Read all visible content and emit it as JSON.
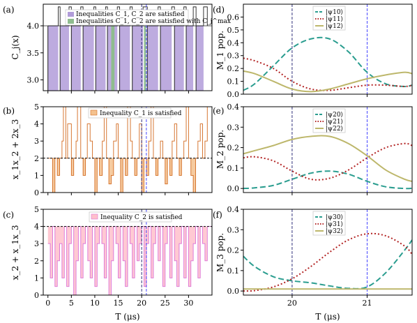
{
  "chart_data": [
    {
      "panel": "(a)",
      "type": "area",
      "ylabel": "C_j(x)",
      "xlim": [
        -1,
        35
      ],
      "ylim": [
        2.8,
        4.4
      ],
      "yticks": [
        3.0,
        3.5,
        4.0
      ],
      "ytick_labels": [
        "3.0",
        "3.5",
        "4.0"
      ],
      "legend": [
        "Inequalities C_1, C_2 are satisfied",
        "Inequalities C_1, C_2 are satisfied with C_j^max"
      ],
      "colors": {
        "satisfied": "#b19cd9",
        "max": "#8fbc8f"
      },
      "satisfied_intervals": [
        [
          0,
          2.2
        ],
        [
          2.6,
          4.5
        ],
        [
          5,
          7
        ],
        [
          7.5,
          9.8
        ],
        [
          10.2,
          12.3
        ],
        [
          12.7,
          14.8
        ],
        [
          15.3,
          17.5
        ],
        [
          18,
          20.3
        ],
        [
          21.2,
          23.5
        ],
        [
          24,
          26.4
        ],
        [
          27,
          29
        ],
        [
          29.5,
          31
        ],
        [
          31.6,
          33.2
        ]
      ],
      "max_intervals": [
        [
          13.5,
          14.2
        ],
        [
          20.5,
          20.9
        ]
      ],
      "vlines": [
        20,
        21
      ]
    },
    {
      "panel": "(b)",
      "type": "area",
      "ylabel": "x_1x_2 + 2x_3",
      "xlim": [
        -1,
        35
      ],
      "ylim": [
        0,
        5
      ],
      "yticks": [
        0,
        1,
        2,
        3,
        4,
        5
      ],
      "ytick_labels": [
        "0",
        "1",
        "2",
        "3",
        "4",
        "5"
      ],
      "threshold": 2,
      "legend": [
        "Inequality C_1 is satisfied"
      ],
      "colors": {
        "line": "#d2691e",
        "fill": "#f4c28f"
      },
      "x": [
        0,
        1,
        1.5,
        2,
        2.5,
        3,
        3.3,
        3.8,
        4.2,
        5,
        5.5,
        6,
        6.3,
        7,
        7.5,
        8,
        8.4,
        9,
        9.5,
        10,
        10.5,
        11,
        11.6,
        12,
        12.5,
        13,
        13.5,
        14,
        14.6,
        15,
        15.5,
        16,
        16.5,
        17,
        17.6,
        18,
        18.5,
        19,
        19.5,
        20,
        20.5,
        21,
        21.5,
        22,
        22.5,
        23,
        23.5,
        24,
        24.5,
        25,
        25.5,
        26,
        26.5,
        27,
        27.5,
        28,
        28.5,
        29,
        29.5,
        30,
        30.5,
        31,
        31.5,
        32,
        32.5,
        33,
        33.5,
        34
      ],
      "y": [
        2,
        0,
        2,
        1,
        2,
        3,
        5,
        2,
        4,
        1,
        2,
        3,
        5,
        2,
        1,
        2,
        4,
        3,
        2,
        0,
        2,
        1,
        3,
        5,
        2,
        0.5,
        1,
        3,
        4,
        2,
        0,
        2,
        1,
        5,
        3,
        2,
        1,
        2,
        4,
        0,
        2,
        1,
        3,
        5,
        2,
        1,
        2,
        3,
        2,
        0.5,
        2,
        1,
        3,
        4,
        2,
        1,
        2,
        3,
        5,
        2,
        1,
        0,
        2,
        3,
        4,
        2,
        3,
        5
      ]
    },
    {
      "panel": "(c)",
      "type": "area",
      "ylabel": "x_2 + x_1x_3",
      "xlabel": "T (μs)",
      "xlim": [
        -1,
        35
      ],
      "ylim": [
        0,
        5
      ],
      "xticks": [
        0,
        5,
        10,
        15,
        20,
        25,
        30
      ],
      "xtick_labels": [
        "0",
        "5",
        "10",
        "15",
        "20",
        "25",
        "30"
      ],
      "yticks": [
        0,
        1,
        2,
        3,
        4,
        5
      ],
      "ytick_labels": [
        "0",
        "1",
        "2",
        "3",
        "4",
        "5"
      ],
      "threshold": 4,
      "legend": [
        "Inequality C_2 is satisfied"
      ],
      "colors": {
        "line": "#da70d6",
        "fill": "#ffc0cb"
      },
      "x": [
        0,
        0.5,
        1,
        1.5,
        2,
        2.5,
        3,
        3.5,
        4,
        4.5,
        5,
        5.5,
        6,
        6.5,
        7,
        7.5,
        8,
        8.5,
        9,
        9.5,
        10,
        10.5,
        11,
        11.5,
        12,
        12.5,
        13,
        13.5,
        14,
        14.5,
        15,
        15.5,
        16,
        16.5,
        17,
        17.5,
        18,
        18.5,
        19,
        19.5,
        20,
        20.5,
        21,
        21.5,
        22,
        22.5,
        23,
        23.5,
        24,
        24.5,
        25,
        25.5,
        26,
        26.5,
        27,
        27.5,
        28,
        28.5,
        29,
        29.5,
        30,
        30.5,
        31,
        31.5,
        32,
        32.5,
        33,
        33.5,
        34
      ],
      "y": [
        3,
        1,
        4,
        0.5,
        2,
        3,
        1,
        4,
        0.5,
        3,
        4,
        0,
        2,
        4,
        1,
        3,
        4,
        2,
        1,
        4,
        0.5,
        3,
        4,
        3,
        1,
        4,
        0,
        2,
        4,
        3,
        1,
        4,
        2,
        0.5,
        4,
        3,
        1,
        4,
        2,
        3,
        4,
        0.5,
        3,
        4,
        1,
        3,
        4,
        2,
        4,
        0.5,
        3,
        4,
        1,
        4,
        2,
        0.5,
        3,
        4,
        1,
        4,
        0.5,
        2,
        3,
        4,
        1,
        4,
        3,
        2,
        4
      ]
    },
    {
      "panel": "(d)",
      "type": "line",
      "ylabel": "M_1 pop.",
      "xlim": [
        19.35,
        21.6
      ],
      "ylim": [
        0,
        0.7
      ],
      "yticks": [
        0.0,
        0.1,
        0.2,
        0.3,
        0.4,
        0.5,
        0.6
      ],
      "ytick_labels": [
        "0.0",
        "0.1",
        "0.2",
        "0.3",
        "0.4",
        "0.5",
        "0.6"
      ],
      "vlines": [
        20,
        21
      ],
      "x": [
        19.35,
        19.5,
        19.75,
        20,
        20.25,
        20.5,
        20.75,
        21,
        21.25,
        21.5,
        21.6
      ],
      "series": [
        {
          "name": "|ψ10⟩",
          "color": "#2a9d8f",
          "dash": "8,4",
          "values": [
            0.03,
            0.08,
            0.22,
            0.36,
            0.43,
            0.43,
            0.33,
            0.17,
            0.08,
            0.06,
            0.07
          ]
        },
        {
          "name": "|ψ11⟩",
          "color": "#b22222",
          "dash": "2,3",
          "values": [
            0.28,
            0.26,
            0.2,
            0.1,
            0.04,
            0.03,
            0.05,
            0.07,
            0.07,
            0.06,
            0.07
          ]
        },
        {
          "name": "|ψ12⟩",
          "color": "#bdb76b",
          "dash": "",
          "values": [
            0.18,
            0.16,
            0.1,
            0.04,
            0.02,
            0.04,
            0.08,
            0.12,
            0.15,
            0.17,
            0.16
          ]
        }
      ]
    },
    {
      "panel": "(e)",
      "type": "line",
      "ylabel": "M_2 pop.",
      "xlim": [
        19.35,
        21.6
      ],
      "ylim": [
        -0.02,
        0.4
      ],
      "yticks": [
        0.0,
        0.1,
        0.2,
        0.3,
        0.4
      ],
      "ytick_labels": [
        "0.0",
        "0.1",
        "0.2",
        "0.3",
        "0.4"
      ],
      "vlines": [
        20,
        21
      ],
      "x": [
        19.35,
        19.5,
        19.75,
        20,
        20.25,
        20.5,
        20.75,
        21,
        21.25,
        21.5,
        21.6
      ],
      "series": [
        {
          "name": "|ψ20⟩",
          "color": "#2a9d8f",
          "dash": "8,4",
          "values": [
            0.0,
            0.003,
            0.015,
            0.045,
            0.075,
            0.085,
            0.07,
            0.035,
            0.008,
            0.0,
            0.001
          ]
        },
        {
          "name": "|ψ21⟩",
          "color": "#b22222",
          "dash": "2,3",
          "values": [
            0.15,
            0.155,
            0.135,
            0.085,
            0.045,
            0.05,
            0.09,
            0.15,
            0.2,
            0.22,
            0.21
          ]
        },
        {
          "name": "|ψ22⟩",
          "color": "#bdb76b",
          "dash": "",
          "values": [
            0.17,
            0.185,
            0.21,
            0.24,
            0.255,
            0.255,
            0.22,
            0.16,
            0.09,
            0.045,
            0.035
          ]
        }
      ]
    },
    {
      "panel": "(f)",
      "type": "line",
      "ylabel": "M_3 pop.",
      "xlabel": "T (μs)",
      "xlim": [
        19.35,
        21.6
      ],
      "ylim": [
        -0.02,
        0.4
      ],
      "xticks": [
        20,
        21
      ],
      "xtick_labels": [
        "20",
        "21"
      ],
      "yticks": [
        0.0,
        0.1,
        0.2,
        0.3,
        0.4
      ],
      "ytick_labels": [
        "0.0",
        "0.1",
        "0.2",
        "0.3",
        "0.4"
      ],
      "vlines": [
        20,
        21
      ],
      "x": [
        19.35,
        19.5,
        19.75,
        20,
        20.25,
        20.5,
        20.75,
        21,
        21.25,
        21.5,
        21.6
      ],
      "series": [
        {
          "name": "|ψ30⟩",
          "color": "#2a9d8f",
          "dash": "8,4",
          "values": [
            0.17,
            0.12,
            0.07,
            0.05,
            0.04,
            0.025,
            0.013,
            0.02,
            0.09,
            0.2,
            0.25
          ]
        },
        {
          "name": "|ψ31⟩",
          "color": "#b22222",
          "dash": "2,3",
          "values": [
            0.0,
            0.002,
            0.02,
            0.06,
            0.12,
            0.19,
            0.25,
            0.28,
            0.27,
            0.22,
            0.18
          ]
        },
        {
          "name": "|ψ32⟩",
          "color": "#bdb76b",
          "dash": "",
          "values": [
            0.01,
            0.01,
            0.01,
            0.01,
            0.01,
            0.01,
            0.01,
            0.01,
            0.01,
            0.01,
            0.01
          ]
        }
      ]
    }
  ]
}
